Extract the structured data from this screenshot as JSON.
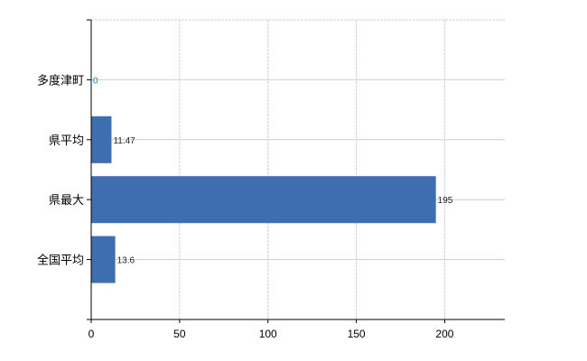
{
  "chart_data": {
    "type": "bar",
    "orientation": "horizontal",
    "categories": [
      "多度津町",
      "県平均",
      "県最大",
      "全国平均"
    ],
    "values": [
      0,
      11.47,
      195,
      13.6
    ],
    "data_labels": [
      "0",
      "11.47",
      "195",
      "13.6"
    ],
    "x_ticks": [
      "0",
      "50",
      "100",
      "150",
      "200"
    ],
    "xlim": [
      0,
      234
    ],
    "grid": true,
    "bar_color": "#3e6db0",
    "title": "",
    "xlabel": "",
    "ylabel": ""
  }
}
